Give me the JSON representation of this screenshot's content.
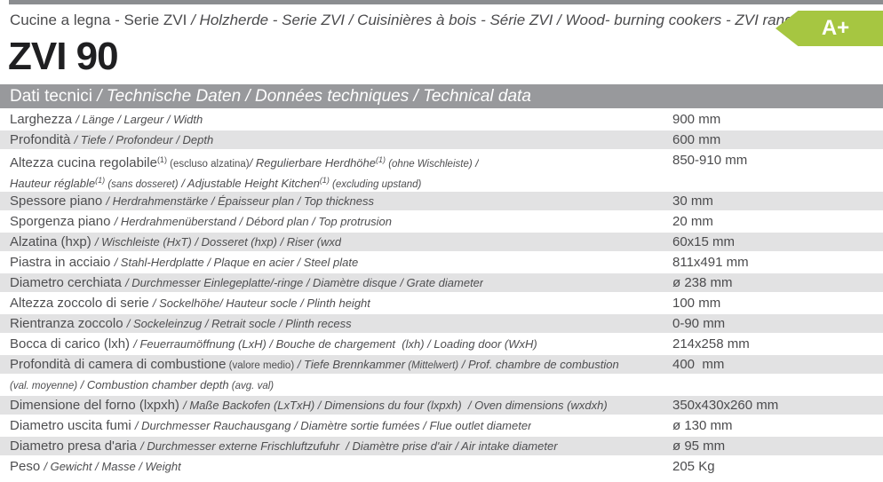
{
  "header": {
    "series_line": {
      "primary": "Cucine a legna - Serie ZVI ",
      "translations": "/ Holzherde - Serie ZVI / Cuisinières à bois - Série ZVI / Wood- burning cookers - ZVI range"
    },
    "model": "ZVI 90",
    "energy_badge": {
      "label": "A+",
      "color": "#a6c641"
    }
  },
  "section_bar": {
    "primary": "Dati tecnici ",
    "translations": "/ Technische Daten / Données techniques / Technical data",
    "background": "#98999c"
  },
  "colors": {
    "row_shade": "#e2e2e3",
    "top_strip": "#8b8d90",
    "text": "#4b4b4d"
  },
  "table": {
    "value_unit_note": "values as printed, including ø symbols",
    "lines": [
      {
        "shade": false,
        "value": "900 mm",
        "segs": [
          {
            "k": "p",
            "t": "Larghezza "
          },
          {
            "k": "t",
            "t": "/ Länge / Largeur / Width"
          }
        ]
      },
      {
        "shade": true,
        "value": "600 mm",
        "segs": [
          {
            "k": "p",
            "t": "Profondità "
          },
          {
            "k": "t",
            "t": "/ Tiefe / Profondeur / Depth"
          }
        ]
      },
      {
        "shade": false,
        "value": "850-910 mm",
        "segs": [
          {
            "k": "p",
            "t": "Altezza cucina regolabile"
          },
          {
            "k": "sup",
            "t": "(1)"
          },
          {
            "k": "s",
            "t": " (escluso alzatina)"
          },
          {
            "k": "t",
            "t": "/ Regulierbare Herdhöhe"
          },
          {
            "k": "supi",
            "t": "(1)"
          },
          {
            "k": "si",
            "t": " (ohne Wischleiste)"
          },
          {
            "k": "t",
            "t": " /"
          }
        ]
      },
      {
        "shade": false,
        "value": null,
        "segs": [
          {
            "k": "t",
            "t": "Hauteur réglable"
          },
          {
            "k": "supi",
            "t": "(1)"
          },
          {
            "k": "si",
            "t": " (sans dosseret)"
          },
          {
            "k": "t",
            "t": " / Adjustable Height Kitchen"
          },
          {
            "k": "supi",
            "t": "(1)"
          },
          {
            "k": "si",
            "t": " (excluding upstand)"
          }
        ]
      },
      {
        "shade": true,
        "value": "30 mm",
        "segs": [
          {
            "k": "p",
            "t": "Spessore piano "
          },
          {
            "k": "t",
            "t": "/ Herdrahmenstärke / Épaisseur plan / Top thickness"
          }
        ]
      },
      {
        "shade": false,
        "value": "20 mm",
        "segs": [
          {
            "k": "p",
            "t": "Sporgenza piano "
          },
          {
            "k": "t",
            "t": "/ Herdrahmenüberstand / Débord plan / Top protrusion"
          }
        ]
      },
      {
        "shade": true,
        "value": "60x15 mm",
        "segs": [
          {
            "k": "p",
            "t": "Alzatina (hxp) "
          },
          {
            "k": "t",
            "t": "/ Wischleiste (HxT) / Dosseret (hxp) / Riser (wxd"
          }
        ]
      },
      {
        "shade": false,
        "value": "811x491 mm",
        "segs": [
          {
            "k": "p",
            "t": "Piastra in acciaio "
          },
          {
            "k": "t",
            "t": "/ Stahl-Herdplatte / Plaque en acier / Steel plate"
          }
        ]
      },
      {
        "shade": true,
        "value": "ø 238 mm",
        "segs": [
          {
            "k": "p",
            "t": "Diametro cerchiata "
          },
          {
            "k": "t",
            "t": "/ Durchmesser Einlegeplatte/-ringe / Diamètre disque / Grate diameter"
          }
        ]
      },
      {
        "shade": false,
        "value": "100 mm",
        "segs": [
          {
            "k": "p",
            "t": "Altezza zoccolo di serie "
          },
          {
            "k": "t",
            "t": "/ Sockelhöhe/ Hauteur socle / Plinth height"
          }
        ]
      },
      {
        "shade": true,
        "value": "0-90 mm",
        "segs": [
          {
            "k": "p",
            "t": "Rientranza zoccolo "
          },
          {
            "k": "t",
            "t": "/ Sockeleinzug / Retrait socle / Plinth recess"
          }
        ]
      },
      {
        "shade": false,
        "value": "214x258 mm",
        "segs": [
          {
            "k": "p",
            "t": "Bocca di carico (lxh) "
          },
          {
            "k": "t",
            "t": "/ Feuerraumöffnung (LxH) / Bouche de chargement  (lxh) / Loading door (WxH)"
          }
        ]
      },
      {
        "shade": true,
        "value": "400  mm",
        "segs": [
          {
            "k": "p",
            "t": "Profondità di camera di combustione"
          },
          {
            "k": "s",
            "t": " (valore medio)"
          },
          {
            "k": "t",
            "t": " / Tiefe Brennkammer"
          },
          {
            "k": "si",
            "t": " (Mittelwert)"
          },
          {
            "k": "t",
            "t": " / Prof. chambre de combustion"
          }
        ]
      },
      {
        "shade": false,
        "value": null,
        "segs": [
          {
            "k": "si",
            "t": "(val. moyenne)"
          },
          {
            "k": "t",
            "t": " / Combustion chamber depth"
          },
          {
            "k": "si",
            "t": " (avg. val)"
          }
        ]
      },
      {
        "shade": true,
        "value": "350x430x260 mm",
        "segs": [
          {
            "k": "p",
            "t": "Dimensione del forno (lxpxh) "
          },
          {
            "k": "t",
            "t": "/ Maße Backofen (LxTxH) / Dimensions du four (lxpxh)  / Oven dimensions (wxdxh)"
          }
        ]
      },
      {
        "shade": false,
        "value": "ø 130 mm",
        "segs": [
          {
            "k": "p",
            "t": "Diametro uscita fumi "
          },
          {
            "k": "t",
            "t": "/ Durchmesser Rauchausgang / Diamètre sortie fumées / Flue outlet diameter"
          }
        ]
      },
      {
        "shade": true,
        "value": "ø 95 mm",
        "segs": [
          {
            "k": "p",
            "t": "Diametro presa d'aria "
          },
          {
            "k": "t",
            "t": "/ Durchmesser externe Frischluftzufuhr  / Diamètre prise d'air / Air intake diameter"
          }
        ]
      },
      {
        "shade": false,
        "value": "205 Kg",
        "segs": [
          {
            "k": "p",
            "t": "Peso "
          },
          {
            "k": "t",
            "t": "/ Gewicht / Masse / Weight"
          }
        ]
      }
    ]
  }
}
